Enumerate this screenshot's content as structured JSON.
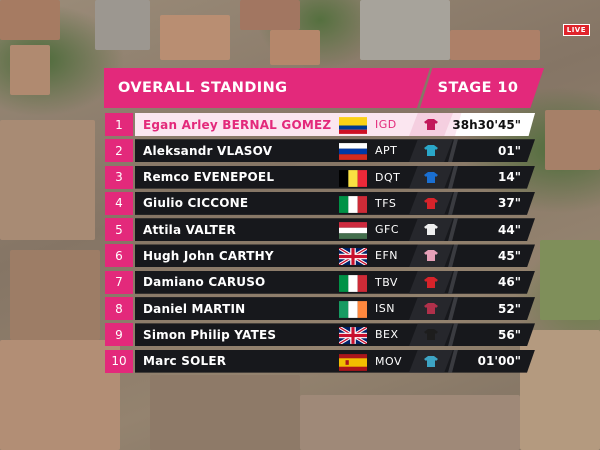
{
  "broadcast": {
    "live_badge": "LIVE"
  },
  "header": {
    "title": "OVERALL STANDING",
    "stage": "STAGE 10"
  },
  "colors": {
    "accent": "#e3297b",
    "row_bg": "#17181c",
    "leader_bg": "#fbe6f0"
  },
  "standings": [
    {
      "rank": "1",
      "name": "Egan Arley BERNAL GOMEZ",
      "country": "Colombia",
      "flag": "flag-colombia",
      "team": "IGD",
      "jersey": "pink-jersey-icon",
      "time": "38h30'45\""
    },
    {
      "rank": "2",
      "name": "Aleksandr VLASOV",
      "country": "Russia",
      "flag": "flag-russia",
      "team": "APT",
      "jersey": "team-jersey-icon",
      "time": "01\""
    },
    {
      "rank": "3",
      "name": "Remco EVENEPOEL",
      "country": "Belgium",
      "flag": "flag-belgium",
      "team": "DQT",
      "jersey": "team-jersey-icon",
      "time": "14\""
    },
    {
      "rank": "4",
      "name": "Giulio CICCONE",
      "country": "Italy",
      "flag": "flag-italy",
      "team": "TFS",
      "jersey": "team-jersey-icon",
      "time": "37\""
    },
    {
      "rank": "5",
      "name": "Attila VALTER",
      "country": "Hungary",
      "flag": "flag-hungary",
      "team": "GFC",
      "jersey": "team-jersey-icon",
      "time": "44\""
    },
    {
      "rank": "6",
      "name": "Hugh John CARTHY",
      "country": "Great Britain",
      "flag": "flag-uk",
      "team": "EFN",
      "jersey": "team-jersey-icon",
      "time": "45\""
    },
    {
      "rank": "7",
      "name": "Damiano CARUSO",
      "country": "Italy",
      "flag": "flag-italy",
      "team": "TBV",
      "jersey": "team-jersey-icon",
      "time": "46\""
    },
    {
      "rank": "8",
      "name": "Daniel MARTIN",
      "country": "Ireland",
      "flag": "flag-ireland",
      "team": "ISN",
      "jersey": "team-jersey-icon",
      "time": "52\""
    },
    {
      "rank": "9",
      "name": "Simon Philip YATES",
      "country": "Great Britain",
      "flag": "flag-uk",
      "team": "BEX",
      "jersey": "team-jersey-icon",
      "time": "56\""
    },
    {
      "rank": "10",
      "name": "Marc SOLER",
      "country": "Spain",
      "flag": "flag-spain",
      "team": "MOV",
      "jersey": "team-jersey-icon",
      "time": "01'00\""
    }
  ],
  "jersey_colors": [
    "#c2185b",
    "#2aa7c9",
    "#1a6fd1",
    "#d8232a",
    "#eeeeee",
    "#e6a0b8",
    "#d8232a",
    "#b0304a",
    "#1d1d1d",
    "#3da4c4"
  ]
}
